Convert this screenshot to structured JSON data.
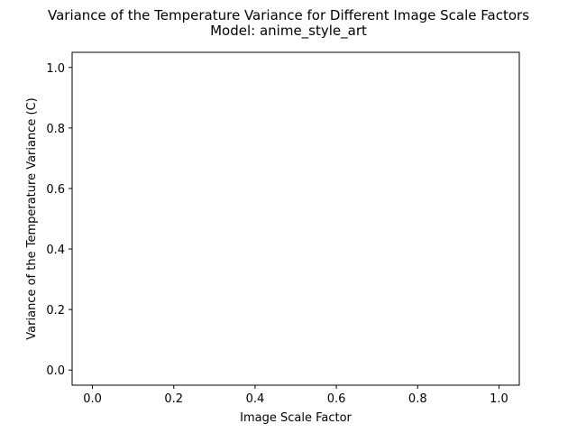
{
  "chart_data": {
    "type": "line",
    "title": "Variance of the Temperature Variance for Different Image Scale Factors",
    "subtitle": "Model: anime_style_art",
    "xlabel": "Image Scale Factor",
    "ylabel": "Variance of the Temperature Variance (C)",
    "xlim": [
      -0.05,
      1.05
    ],
    "ylim": [
      -0.05,
      1.05
    ],
    "x_ticks": [
      0.0,
      0.2,
      0.4,
      0.6,
      0.8,
      1.0
    ],
    "x_tick_labels": [
      "0.0",
      "0.2",
      "0.4",
      "0.6",
      "0.8",
      "1.0"
    ],
    "y_ticks": [
      0.0,
      0.2,
      0.4,
      0.6,
      0.8,
      1.0
    ],
    "y_tick_labels": [
      "0.0",
      "0.2",
      "0.4",
      "0.6",
      "0.8",
      "1.0"
    ],
    "grid": false,
    "series": [],
    "colors": {
      "axis": "#000000",
      "background": "#ffffff"
    }
  }
}
